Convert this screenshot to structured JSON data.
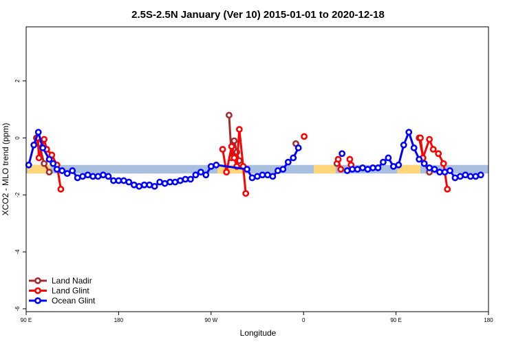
{
  "chart_data": {
    "type": "line",
    "title": "2.5S-2.5N January (Ver 10)   2015-01-01 to 2020-12-18",
    "xlabel": "Longitude",
    "ylabel": "XCO2 - MLO trend (ppm)",
    "xlim": [
      90,
      450
    ],
    "ylim": [
      -6.1,
      3.9
    ],
    "x_ticks": [
      {
        "value": 90,
        "label": "90 E"
      },
      {
        "value": 162,
        "label": "180"
      },
      {
        "value": 234,
        "label": "90 W"
      },
      {
        "value": 306,
        "label": "0"
      },
      {
        "value": 378,
        "label": "90 E"
      },
      {
        "value": 450,
        "label": "180"
      }
    ],
    "y_ticks": [
      {
        "value": -6,
        "label": "-6"
      },
      {
        "value": -4,
        "label": "-4"
      },
      {
        "value": -2,
        "label": "-2"
      },
      {
        "value": 0,
        "label": "0"
      },
      {
        "value": 2,
        "label": "2"
      }
    ],
    "grid": false,
    "legend_position": "bottom-left",
    "reference_band": {
      "y_low": -1.25,
      "y_high": -0.95,
      "color": "#A9BFDF"
    },
    "land_band_segments": [
      {
        "x_start": 91,
        "x_end": 109
      },
      {
        "x_start": 239,
        "x_end": 259
      },
      {
        "x_start": 314,
        "x_end": 331
      },
      {
        "x_start": 379,
        "x_end": 397
      }
    ],
    "land_band_color": "#FFD77A",
    "series": [
      {
        "name": "Land Nadir",
        "color": "#A52A2A",
        "segments": [
          [
            [
              98,
              0.0
            ],
            [
              100,
              -0.2
            ],
            [
              104,
              -0.9
            ],
            [
              108,
              -1.2
            ]
          ],
          [
            [
              248,
              0.8
            ],
            [
              250,
              -0.7
            ],
            [
              252,
              -0.1
            ],
            [
              254,
              -0.5
            ],
            [
              256,
              -0.8
            ]
          ],
          [
            [
              300,
              -0.2
            ]
          ],
          [
            [
              332,
              -0.9
            ]
          ],
          [
            [
              396,
              0.0
            ],
            [
              400,
              -0.9
            ],
            [
              404,
              -1.2
            ]
          ]
        ]
      },
      {
        "name": "Land Glint",
        "color": "#FF0000",
        "segments": [
          [
            [
              99,
              0.0
            ],
            [
              100,
              -0.7
            ],
            [
              104,
              -0.05
            ],
            [
              106,
              -0.4
            ],
            [
              110,
              -0.6
            ],
            [
              114,
              -0.95
            ],
            [
              117,
              -1.8
            ]
          ],
          [
            [
              243,
              -0.4
            ],
            [
              246,
              -1.2
            ],
            [
              250,
              -0.3
            ],
            [
              252,
              -0.7
            ],
            [
              254,
              -1.0
            ],
            [
              256,
              0.3
            ],
            [
              259,
              -1.0
            ],
            [
              261,
              -1.95
            ]
          ],
          [
            [
              306.5,
              0.05
            ]
          ],
          [
            [
              333,
              -0.75
            ],
            [
              335,
              -1.1
            ]
          ],
          [
            [
              342,
              -0.75
            ],
            [
              343,
              -0.95
            ]
          ],
          [
            [
              397,
              0.0
            ],
            [
              399,
              -0.7
            ],
            [
              404,
              -0.05
            ],
            [
              407,
              -0.4
            ],
            [
              411,
              -0.55
            ],
            [
              415,
              -0.9
            ],
            [
              418,
              -1.8
            ]
          ]
        ]
      },
      {
        "name": "Ocean Glint",
        "color": "#0000FF",
        "segments": [
          [
            [
              92,
              -0.95
            ],
            [
              96,
              -0.25
            ],
            [
              99.5,
              0.2
            ],
            [
              103,
              -0.35
            ],
            [
              108,
              -0.75
            ],
            [
              111,
              -0.9
            ],
            [
              114,
              -1.1
            ],
            [
              118,
              -1.15
            ],
            [
              122,
              -1.25
            ],
            [
              126,
              -1.15
            ],
            [
              130,
              -1.4
            ],
            [
              134,
              -1.35
            ],
            [
              138,
              -1.3
            ],
            [
              142,
              -1.35
            ],
            [
              146,
              -1.35
            ],
            [
              150,
              -1.3
            ],
            [
              154,
              -1.35
            ],
            [
              158,
              -1.5
            ],
            [
              162,
              -1.5
            ],
            [
              166,
              -1.5
            ],
            [
              170,
              -1.55
            ],
            [
              174,
              -1.65
            ],
            [
              178,
              -1.7
            ],
            [
              182,
              -1.65
            ],
            [
              186,
              -1.65
            ],
            [
              190,
              -1.7
            ],
            [
              194,
              -1.55
            ],
            [
              198,
              -1.6
            ],
            [
              202,
              -1.55
            ],
            [
              206,
              -1.55
            ],
            [
              210,
              -1.5
            ],
            [
              214,
              -1.45
            ],
            [
              218,
              -1.45
            ],
            [
              222,
              -1.3
            ],
            [
              226,
              -1.2
            ],
            [
              230,
              -1.3
            ],
            [
              234,
              -1.0
            ],
            [
              238,
              -0.95
            ],
            [
              262,
              -1.1
            ],
            [
              266,
              -1.4
            ],
            [
              270,
              -1.35
            ],
            [
              274,
              -1.3
            ],
            [
              278,
              -1.3
            ],
            [
              282,
              -1.35
            ],
            [
              286,
              -1.15
            ],
            [
              290,
              -1.1
            ],
            [
              294,
              -0.85
            ],
            [
              298,
              -0.7
            ],
            [
              302,
              -0.35
            ]
          ],
          [
            [
              336,
              -0.55
            ]
          ],
          [
            [
              340,
              -1.15
            ],
            [
              344,
              -1.1
            ],
            [
              348,
              -1.1
            ],
            [
              352,
              -1.05
            ],
            [
              356,
              -1.1
            ],
            [
              360,
              -1.05
            ],
            [
              364,
              -1.05
            ],
            [
              368,
              -0.85
            ],
            [
              372,
              -0.7
            ],
            [
              376,
              -1.0
            ],
            [
              380,
              -0.95
            ],
            [
              384,
              -0.25
            ],
            [
              388,
              0.2
            ],
            [
              392,
              -0.35
            ],
            [
              396,
              -0.75
            ],
            [
              400,
              -0.9
            ],
            [
              404,
              -1.05
            ],
            [
              408,
              -1.1
            ],
            [
              412,
              -1.2
            ],
            [
              416,
              -1.2
            ],
            [
              420,
              -1.15
            ],
            [
              424,
              -1.4
            ],
            [
              428,
              -1.35
            ],
            [
              432,
              -1.3
            ],
            [
              436,
              -1.35
            ],
            [
              440,
              -1.35
            ],
            [
              444,
              -1.3
            ]
          ]
        ]
      }
    ]
  }
}
